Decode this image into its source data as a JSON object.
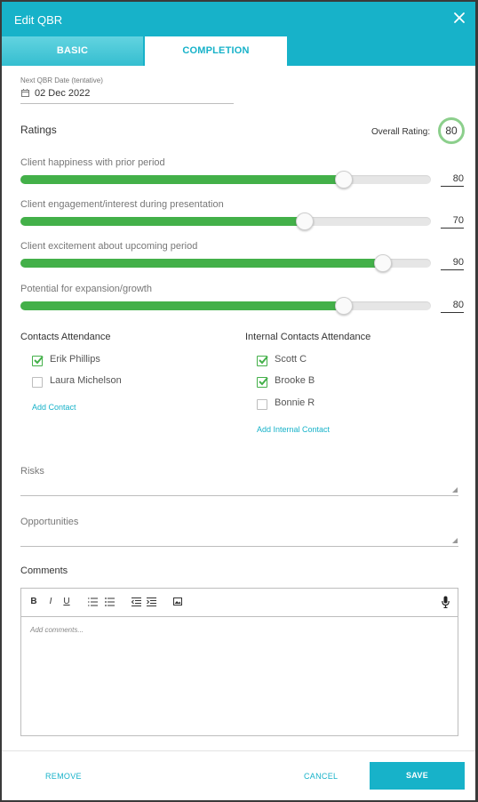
{
  "dialog": {
    "title": "Edit QBR"
  },
  "tabs": [
    {
      "label": "BASIC",
      "active": false
    },
    {
      "label": "COMPLETION",
      "active": true
    }
  ],
  "next_date": {
    "label": "Next QBR Date (tentative)",
    "value": "02 Dec 2022"
  },
  "ratings": {
    "heading": "Ratings",
    "overall_label": "Overall Rating:",
    "overall_value": "80",
    "sliders": [
      {
        "label": "Client happiness with prior period",
        "value": "80"
      },
      {
        "label": "Client engagement/interest during presentation",
        "value": "70"
      },
      {
        "label": "Client excitement about upcoming period",
        "value": "90"
      },
      {
        "label": "Potential for expansion/growth",
        "value": "80"
      }
    ]
  },
  "contacts": {
    "heading": "Contacts Attendance",
    "items": [
      {
        "label": "Erik Phillips",
        "checked": true
      },
      {
        "label": "Laura Michelson",
        "checked": false
      }
    ],
    "add_label": "Add Contact"
  },
  "internal_contacts": {
    "heading": "Internal Contacts Attendance",
    "items": [
      {
        "label": "Scott C",
        "checked": true
      },
      {
        "label": "Brooke B",
        "checked": true
      },
      {
        "label": "Bonnie R",
        "checked": false
      }
    ],
    "add_label": "Add Internal Contact"
  },
  "risks": {
    "placeholder": "Risks"
  },
  "opportunities": {
    "placeholder": "Opportunities"
  },
  "comments": {
    "heading": "Comments",
    "placeholder": "Add comments...",
    "toolbar": {
      "bold": "B",
      "italic": "I",
      "underline": "U"
    }
  },
  "footer": {
    "remove": "REMOVE",
    "cancel": "CANCEL",
    "save": "SAVE"
  },
  "colors": {
    "accent": "#17b2c9",
    "slider_fill": "#43b049",
    "rating_ring": "#8ccf8c"
  },
  "icons": [
    "close-icon",
    "calendar-icon",
    "checkbox-checked-icon",
    "ordered-list-icon",
    "bullet-list-icon",
    "outdent-icon",
    "indent-icon",
    "image-icon",
    "microphone-icon"
  ]
}
